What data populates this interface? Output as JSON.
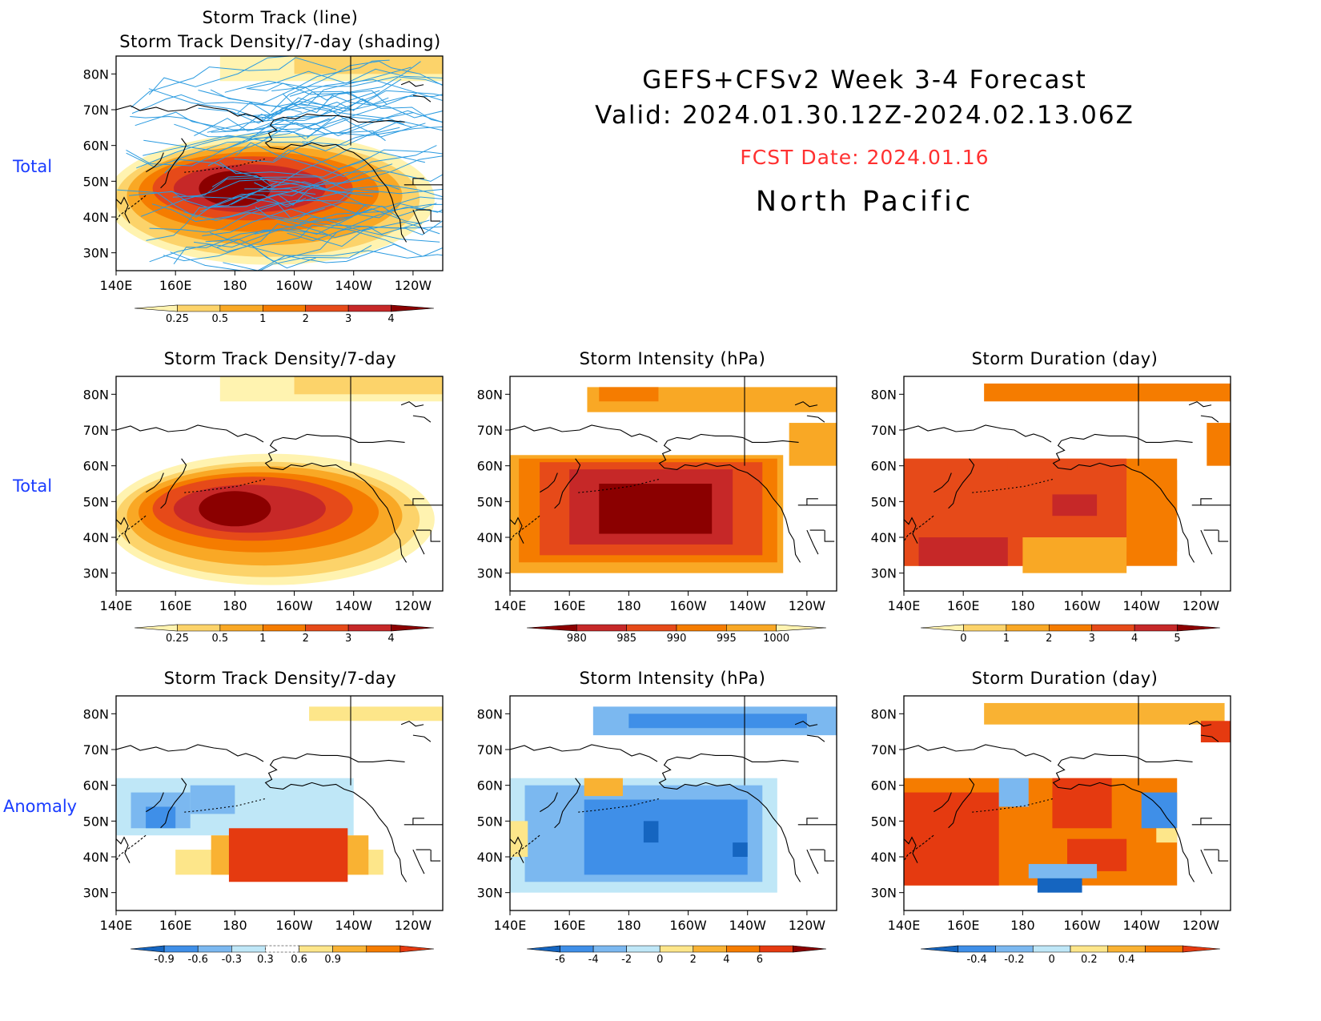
{
  "header": {
    "title_line1": "GEFS+CFSv2  Week  3-4  Forecast",
    "title_line2": "Valid:  2024.01.30.12Z-2024.02.13.06Z",
    "fcst_date": "FCST Date: 2024.01.16",
    "region": "North  Pacific"
  },
  "row_labels": {
    "total": "Total",
    "anomaly": "Anomaly"
  },
  "axes": {
    "lat_labels": [
      "80N",
      "70N",
      "60N",
      "50N",
      "40N",
      "30N"
    ],
    "lon_labels": [
      "140E",
      "160E",
      "180",
      "160W",
      "140W",
      "120W"
    ]
  },
  "panels": {
    "track": {
      "title1": "Storm Track (line)",
      "title2": "Storm Track Density/7-day (shading)"
    },
    "density_total": {
      "title": "Storm Track Density/7-day"
    },
    "intensity_total": {
      "title": "Storm Intensity (hPa)"
    },
    "duration_total": {
      "title": "Storm Duration (day)"
    },
    "density_anom": {
      "title": "Storm Track Density/7-day"
    },
    "intensity_anom": {
      "title": "Storm Intensity (hPa)"
    },
    "duration_anom": {
      "title": "Storm Duration (day)"
    }
  },
  "colorbars": {
    "density": {
      "labels": [
        "0.25",
        "0.5",
        "1",
        "2",
        "3",
        "4"
      ],
      "colors": [
        "#fff3b0",
        "#fcd36a",
        "#f9a825",
        "#f57c00",
        "#e64a19",
        "#c62828",
        "#8b0000"
      ]
    },
    "intensity": {
      "labels": [
        "980",
        "985",
        "990",
        "995",
        "1000"
      ],
      "colors": [
        "#8b0000",
        "#c62828",
        "#e64a19",
        "#f57c00",
        "#f9a825",
        "#fff3b0"
      ]
    },
    "duration": {
      "labels": [
        "0",
        "1",
        "2",
        "3",
        "4",
        "5"
      ],
      "colors": [
        "#fff3b0",
        "#fcd36a",
        "#f9a825",
        "#f57c00",
        "#e64a19",
        "#c62828",
        "#8b0000"
      ]
    },
    "density_anom": {
      "labels": [
        "-0.9",
        "-0.6",
        "-0.3",
        "0.3",
        "0.6",
        "0.9"
      ],
      "colors": [
        "#1565c0",
        "#3f8fe8",
        "#7bb8f0",
        "#bfe7f7",
        "#ffffff",
        "#fde68a",
        "#f9b233",
        "#f57c00",
        "#e53a10"
      ]
    },
    "intensity_anom": {
      "labels": [
        "-6",
        "-4",
        "-2",
        "0",
        "2",
        "4",
        "6"
      ],
      "colors": [
        "#1565c0",
        "#3f8fe8",
        "#7bb8f0",
        "#bfe7f7",
        "#fde68a",
        "#f9b233",
        "#f57c00",
        "#e53a10",
        "#8b0000"
      ]
    },
    "duration_anom": {
      "labels": [
        "-0.4",
        "-0.2",
        "0",
        "0.2",
        "0.4"
      ],
      "colors": [
        "#1565c0",
        "#3f8fe8",
        "#7bb8f0",
        "#bfe7f7",
        "#fde68a",
        "#f9b233",
        "#f57c00",
        "#e53a10"
      ]
    }
  }
}
